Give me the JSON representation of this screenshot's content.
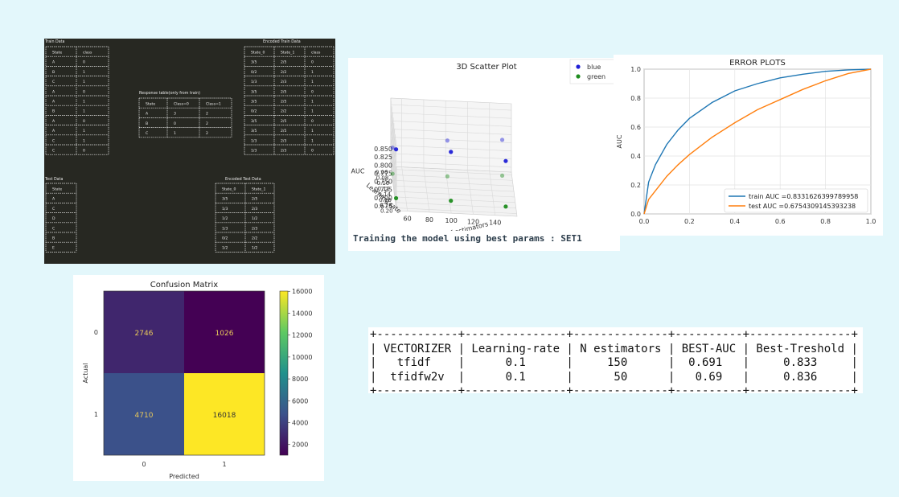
{
  "terminal": {
    "train_title": "Train Data",
    "encoded_train_title": "Encoded Train Data",
    "response_title": "Response table(only from train)",
    "test_title": "Test Data",
    "encoded_test_title": "Encoded Test Data",
    "train_headers": [
      "State",
      "class"
    ],
    "train_rows": [
      [
        "A",
        "0"
      ],
      [
        "B",
        "1"
      ],
      [
        "C",
        "1"
      ],
      [
        "A",
        "0"
      ],
      [
        "A",
        "1"
      ],
      [
        "B",
        "1"
      ],
      [
        "A",
        "0"
      ],
      [
        "A",
        "1"
      ],
      [
        "C",
        "1"
      ],
      [
        "C",
        "0"
      ]
    ],
    "encoded_train_headers": [
      "State_0",
      "State_1",
      "class"
    ],
    "encoded_train_rows": [
      [
        "3/5",
        "2/5",
        "0"
      ],
      [
        "0/2",
        "2/2",
        "1"
      ],
      [
        "1/3",
        "2/3",
        "1"
      ],
      [
        "3/5",
        "2/5",
        "0"
      ],
      [
        "3/5",
        "2/5",
        "1"
      ],
      [
        "0/2",
        "2/2",
        "1"
      ],
      [
        "3/5",
        "2/5",
        "0"
      ],
      [
        "3/5",
        "2/5",
        "1"
      ],
      [
        "1/3",
        "2/3",
        "1"
      ],
      [
        "1/3",
        "2/3",
        "0"
      ]
    ],
    "response_headers": [
      "State",
      "Class=0",
      "Class=1"
    ],
    "response_rows": [
      [
        "A",
        "3",
        "2"
      ],
      [
        "B",
        "0",
        "2"
      ],
      [
        "C",
        "1",
        "2"
      ]
    ],
    "test_headers": [
      "State"
    ],
    "test_rows": [
      [
        "A"
      ],
      [
        "C"
      ],
      [
        "D"
      ],
      [
        "C"
      ],
      [
        "B"
      ],
      [
        "E"
      ]
    ],
    "encoded_test_headers": [
      "State_0",
      "State_1"
    ],
    "encoded_test_rows": [
      [
        "3/5",
        "2/5"
      ],
      [
        "1/3",
        "2/3"
      ],
      [
        "1/2",
        "1/2"
      ],
      [
        "1/3",
        "2/3"
      ],
      [
        "0/2",
        "2/2"
      ],
      [
        "1/2",
        "1/2"
      ]
    ]
  },
  "scatter_caption": "Training the model using best params : SET1",
  "chart_data": [
    {
      "type": "scatter",
      "title": "3D Scatter Plot",
      "xlabel": "No of estimators",
      "ylabel": "Learning rate",
      "zlabel": "AUC",
      "x_ticks": [
        "60",
        "80",
        "100",
        "120",
        "140"
      ],
      "y_ticks": [
        "0.06",
        "0.08",
        "0.10",
        "0.12",
        "0.14",
        "0.16",
        "0.18",
        "0.20"
      ],
      "z_ticks": [
        "0.675",
        "0.700",
        "0.725",
        "0.750",
        "0.775",
        "0.800",
        "0.825",
        "0.850"
      ],
      "xlim": [
        50,
        160
      ],
      "ylim": [
        0.05,
        0.21
      ],
      "zlim": [
        0.66,
        0.87
      ],
      "legend": "top-right",
      "series": [
        {
          "name": "blue",
          "color": "#1f1fd6",
          "points": [
            {
              "x": 50,
              "y": 0.2,
              "z": 0.84
            },
            {
              "x": 100,
              "y": 0.2,
              "z": 0.84
            },
            {
              "x": 150,
              "y": 0.2,
              "z": 0.82
            },
            {
              "x": 150,
              "y": 0.1,
              "z": 0.8
            },
            {
              "x": 100,
              "y": 0.1,
              "z": 0.79
            },
            {
              "x": 50,
              "y": 0.1,
              "z": 0.76
            }
          ]
        },
        {
          "name": "green",
          "color": "#1e8c1e",
          "points": [
            {
              "x": 50,
              "y": 0.2,
              "z": 0.69
            },
            {
              "x": 100,
              "y": 0.2,
              "z": 0.69
            },
            {
              "x": 150,
              "y": 0.2,
              "z": 0.68
            },
            {
              "x": 150,
              "y": 0.1,
              "z": 0.69
            },
            {
              "x": 100,
              "y": 0.1,
              "z": 0.68
            },
            {
              "x": 50,
              "y": 0.1,
              "z": 0.68
            }
          ]
        }
      ]
    },
    {
      "type": "line",
      "title": "ERROR PLOTS",
      "xlabel": "",
      "ylabel": "AUC",
      "xlim": [
        0,
        1
      ],
      "ylim": [
        0,
        1
      ],
      "x_ticks": [
        "0.0",
        "0.2",
        "0.4",
        "0.6",
        "0.8",
        "1.0"
      ],
      "y_ticks": [
        "0.0",
        "0.2",
        "0.4",
        "0.6",
        "0.8",
        "1.0"
      ],
      "grid": true,
      "legend": "bottom-right",
      "series": [
        {
          "name": "train AUC =0.8331626399789958",
          "color": "#1f77b4",
          "x": [
            0,
            0.02,
            0.05,
            0.1,
            0.15,
            0.2,
            0.3,
            0.4,
            0.5,
            0.6,
            0.7,
            0.8,
            0.9,
            1.0
          ],
          "y": [
            0,
            0.22,
            0.34,
            0.48,
            0.58,
            0.66,
            0.77,
            0.85,
            0.9,
            0.94,
            0.965,
            0.985,
            0.995,
            1.0
          ]
        },
        {
          "name": "test AUC =0.6754309145393238",
          "color": "#ff7f0e",
          "x": [
            0,
            0.02,
            0.05,
            0.1,
            0.15,
            0.2,
            0.3,
            0.4,
            0.5,
            0.6,
            0.7,
            0.8,
            0.9,
            1.0
          ],
          "y": [
            0,
            0.1,
            0.16,
            0.26,
            0.34,
            0.41,
            0.53,
            0.63,
            0.72,
            0.79,
            0.86,
            0.92,
            0.97,
            1.0
          ]
        }
      ]
    },
    {
      "type": "heatmap",
      "title": "Confusion Matrix",
      "xlabel": "Predicted",
      "ylabel": "Actual",
      "x_categories": [
        "0",
        "1"
      ],
      "y_categories": [
        "0",
        "1"
      ],
      "values": [
        [
          2746,
          1026
        ],
        [
          4710,
          16018
        ]
      ],
      "colorbar_ticks": [
        "2000",
        "4000",
        "6000",
        "8000",
        "10000",
        "12000",
        "14000",
        "16000"
      ],
      "zlim": [
        1026,
        16018
      ]
    },
    {
      "type": "table",
      "columns": [
        "VECTORIZER",
        "Learning-rate",
        "N estimators",
        "BEST-AUC",
        "Best-Treshold"
      ],
      "rows": [
        [
          "tfidf",
          "0.1",
          "150",
          "0.691",
          "0.833"
        ],
        [
          "tfidfw2v",
          "0.1",
          "50",
          "0.69",
          "0.836"
        ]
      ]
    }
  ]
}
